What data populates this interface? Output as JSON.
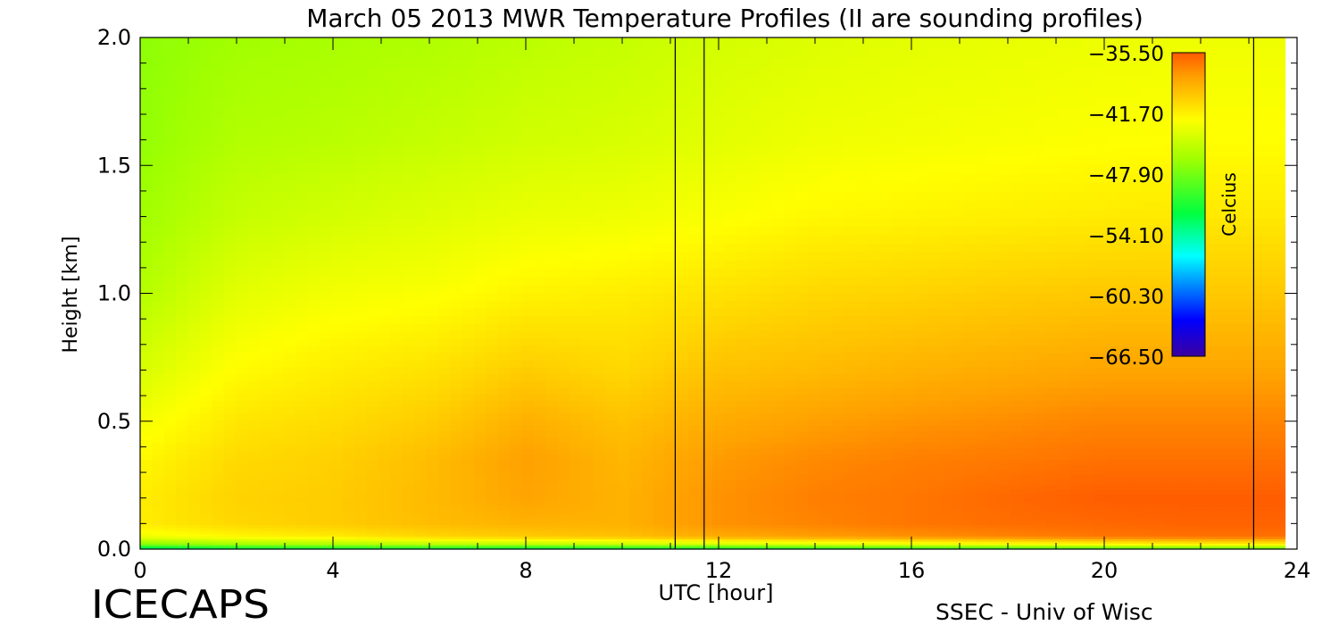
{
  "chart_data": {
    "type": "heatmap",
    "title": "March 05 2013 MWR Temperature Profiles (II are sounding profiles)",
    "xlabel": "UTC [hour]",
    "ylabel": "Height [km]",
    "xlim": [
      0,
      24
    ],
    "ylim": [
      0,
      2.0
    ],
    "x_ticks": [
      "0",
      "4",
      "8",
      "12",
      "16",
      "20",
      "24"
    ],
    "y_ticks": [
      "0.0",
      "0.5",
      "1.0",
      "1.5",
      "2.0"
    ],
    "colorbar": {
      "label": "Celcius",
      "range": [
        -66.5,
        -35.5
      ],
      "tick_labels": [
        "-35.50",
        "-41.70",
        "-47.90",
        "-54.10",
        "-60.30",
        "-66.50"
      ]
    },
    "sounding_profile_hours": [
      11.1,
      11.7,
      23.1
    ],
    "data_end_hour": 23.75,
    "temperature_field": {
      "description_units": "Celcius",
      "heights_km": [
        0.0,
        0.02,
        0.05,
        0.1,
        0.2,
        0.35,
        0.5,
        0.7,
        1.0,
        1.3,
        1.6,
        2.0
      ],
      "hours": [
        0,
        2,
        4,
        6,
        8,
        10,
        12,
        14,
        16,
        18,
        20,
        22,
        23.75
      ],
      "values": [
        [
          -55.0,
          -53.5,
          -53.0,
          -53.0,
          -54.0,
          -53.5,
          -53.0,
          -52.5,
          -52.0,
          -51.5,
          -51.0,
          -50.5,
          -50.0
        ],
        [
          -47.5,
          -46.5,
          -46.0,
          -45.5,
          -45.5,
          -45.0,
          -44.5,
          -44.0,
          -43.5,
          -43.0,
          -42.5,
          -42.0,
          -42.0
        ],
        [
          -43.0,
          -42.0,
          -41.5,
          -40.5,
          -40.0,
          -39.5,
          -38.5,
          -38.0,
          -37.5,
          -37.0,
          -36.5,
          -36.3,
          -36.3
        ],
        [
          -41.5,
          -40.5,
          -40.0,
          -39.3,
          -38.8,
          -38.8,
          -37.5,
          -37.0,
          -36.5,
          -36.2,
          -36.0,
          -35.8,
          -35.8
        ],
        [
          -41.5,
          -40.3,
          -40.0,
          -39.2,
          -38.2,
          -38.8,
          -37.5,
          -36.8,
          -36.5,
          -36.0,
          -35.6,
          -35.6,
          -35.6
        ],
        [
          -42.0,
          -40.6,
          -40.2,
          -39.3,
          -38.0,
          -39.0,
          -37.8,
          -37.2,
          -36.8,
          -36.6,
          -36.3,
          -36.3,
          -36.3
        ],
        [
          -42.8,
          -41.2,
          -40.7,
          -40.0,
          -38.7,
          -39.5,
          -38.5,
          -38.0,
          -37.6,
          -37.3,
          -37.0,
          -37.0,
          -37.0
        ],
        [
          -44.0,
          -42.2,
          -41.5,
          -41.0,
          -40.0,
          -40.5,
          -39.5,
          -39.2,
          -38.8,
          -38.5,
          -38.2,
          -38.2,
          -38.2
        ],
        [
          -45.5,
          -43.5,
          -42.8,
          -42.5,
          -41.8,
          -41.5,
          -41.0,
          -40.5,
          -40.3,
          -40.0,
          -39.8,
          -39.8,
          -39.8
        ],
        [
          -46.3,
          -44.8,
          -44.2,
          -43.7,
          -43.2,
          -43.0,
          -42.5,
          -42.0,
          -41.8,
          -41.6,
          -41.4,
          -41.3,
          -41.3
        ],
        [
          -46.8,
          -45.6,
          -45.3,
          -44.8,
          -44.3,
          -44.0,
          -43.5,
          -43.0,
          -42.8,
          -42.6,
          -42.4,
          -42.3,
          -42.3
        ],
        [
          -47.0,
          -46.3,
          -46.0,
          -45.7,
          -45.2,
          -44.8,
          -44.2,
          -43.8,
          -43.5,
          -43.3,
          -43.1,
          -43.0,
          -43.0
        ]
      ]
    }
  },
  "footer": {
    "left_brand": "ICECAPS",
    "right_credit": "SSEC - Univ of Wisc"
  }
}
